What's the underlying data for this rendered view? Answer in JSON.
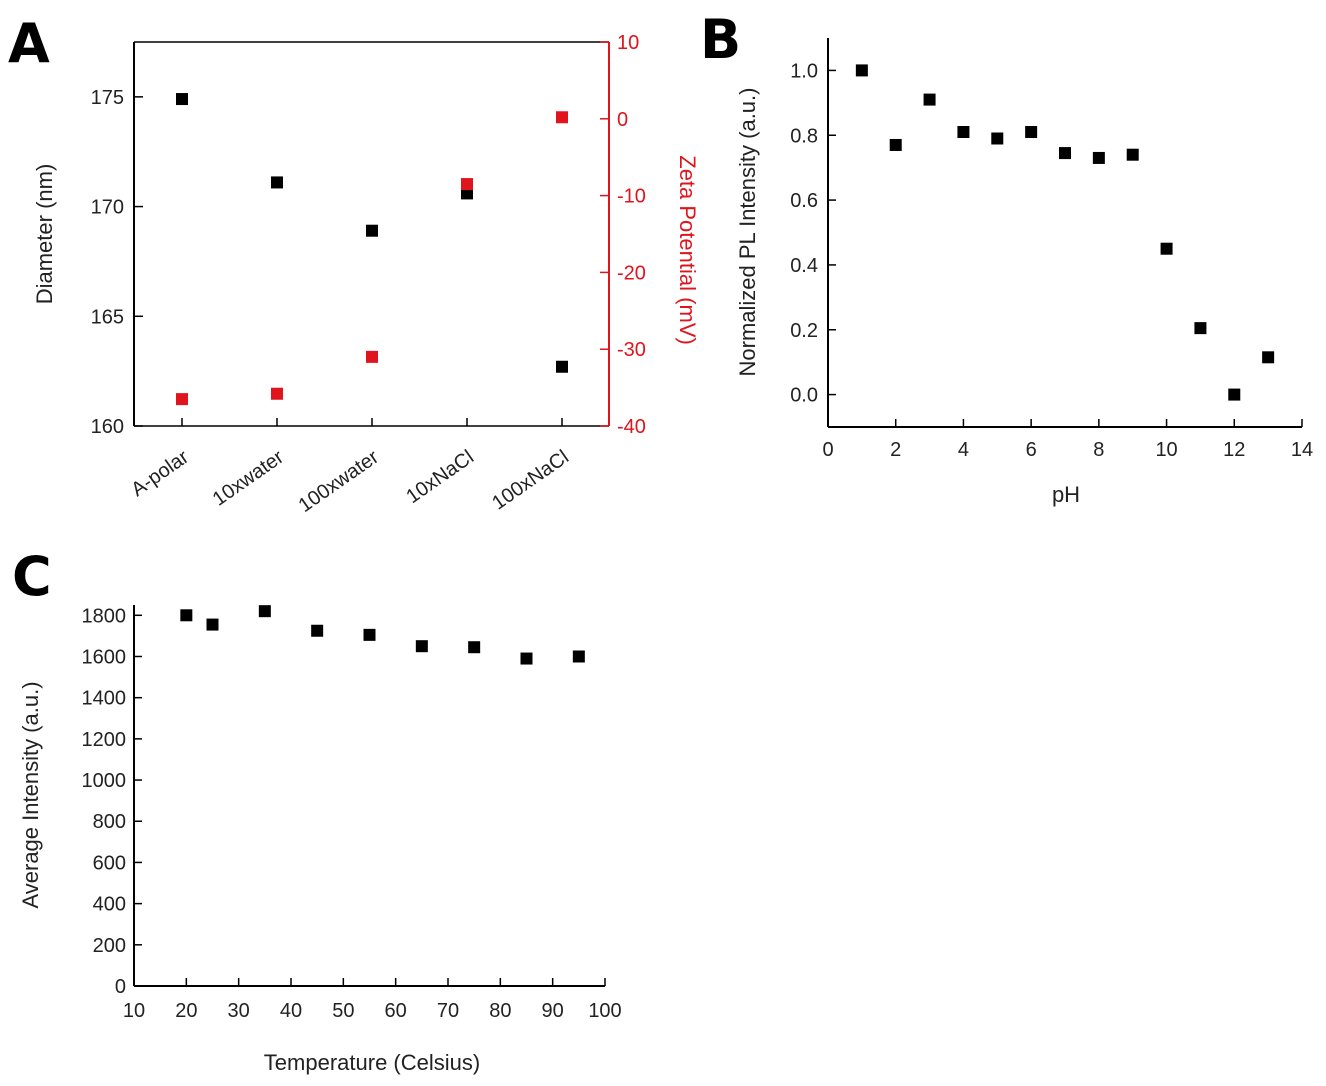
{
  "panels": {
    "a": {
      "label": "A"
    },
    "b": {
      "label": "B"
    },
    "c": {
      "label": "C"
    }
  },
  "colors": {
    "primary": "#000000",
    "secondary_axis": "#e0141c"
  },
  "chart_data": [
    {
      "type": "scatter",
      "panel": "A",
      "categories": [
        "A-polar",
        "10xwater",
        "100xwater",
        "10xNaCl",
        "100xNaCl"
      ],
      "ylabel": "Diameter (nm)",
      "y2label": "Zeta Potential (mV)",
      "ylim": [
        160,
        177.5
      ],
      "y2lim": [
        -40,
        10
      ],
      "yticks": [
        "160",
        "165",
        "170",
        "175"
      ],
      "y2ticks": [
        "-40",
        "-30",
        "-20",
        "-10",
        "0",
        "10"
      ],
      "series": [
        {
          "axis": "left",
          "color": "#000000",
          "values": [
            174.9,
            171.1,
            168.9,
            170.6,
            162.7
          ]
        },
        {
          "axis": "right",
          "color": "#e0141c",
          "values": [
            -36.5,
            -35.8,
            -31.0,
            -8.5,
            0.2
          ]
        }
      ]
    },
    {
      "type": "scatter",
      "panel": "B",
      "xlabel": "pH",
      "ylabel": "Normalized PL Intensity (a.u.)",
      "xlim": [
        0,
        14
      ],
      "ylim": [
        -0.1,
        1.1
      ],
      "xticks": [
        "0",
        "2",
        "4",
        "6",
        "8",
        "10",
        "12",
        "14"
      ],
      "yticks": [
        "0.0",
        "0.2",
        "0.4",
        "0.6",
        "0.8",
        "1.0"
      ],
      "series": [
        {
          "color": "#000000",
          "x": [
            1,
            2,
            3,
            4,
            5,
            6,
            7,
            8,
            9,
            10,
            11,
            12,
            13
          ],
          "y": [
            1.0,
            0.77,
            0.91,
            0.81,
            0.79,
            0.81,
            0.745,
            0.73,
            0.74,
            0.45,
            0.205,
            0.0,
            0.115
          ]
        }
      ]
    },
    {
      "type": "scatter",
      "panel": "C",
      "xlabel": "Temperature (Celsius)",
      "ylabel": "Average Intensity (a.u.)",
      "xlim": [
        10,
        100
      ],
      "ylim": [
        0,
        1850
      ],
      "xticks": [
        "10",
        "20",
        "30",
        "40",
        "50",
        "60",
        "70",
        "80",
        "90",
        "100"
      ],
      "yticks": [
        "0",
        "200",
        "400",
        "600",
        "800",
        "1000",
        "1200",
        "1400",
        "1600",
        "1800"
      ],
      "series": [
        {
          "color": "#000000",
          "x": [
            20,
            25,
            35,
            45,
            55,
            65,
            75,
            85,
            95
          ],
          "y": [
            1800,
            1755,
            1820,
            1725,
            1705,
            1650,
            1645,
            1590,
            1600
          ]
        }
      ]
    }
  ]
}
